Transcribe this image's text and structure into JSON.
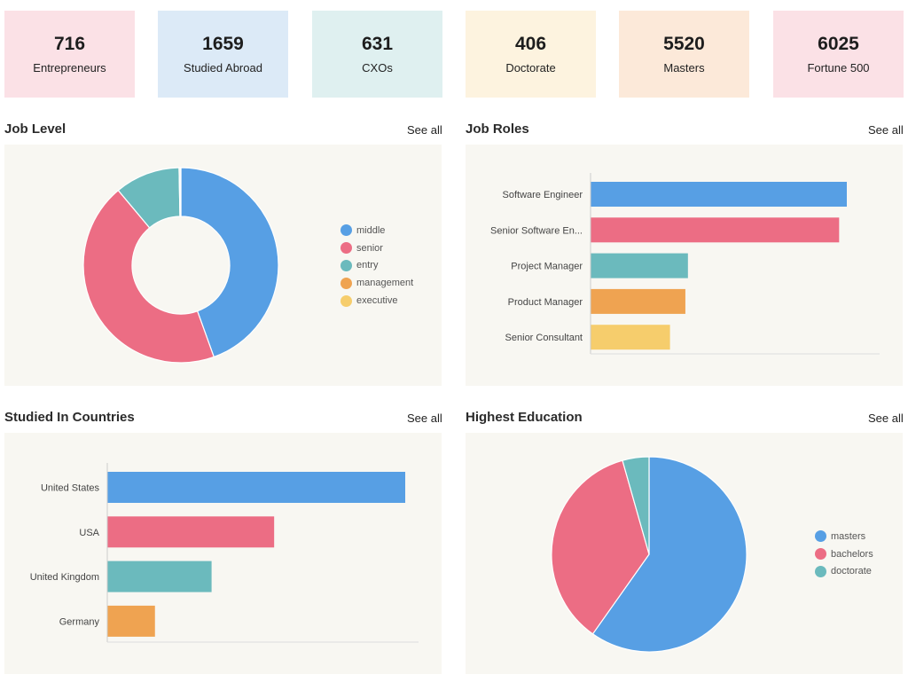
{
  "stats": [
    {
      "value": "716",
      "label": "Entrepreneurs",
      "bg": "#fbe1e6"
    },
    {
      "value": "1659",
      "label": "Studied Abroad",
      "bg": "#dceaf7"
    },
    {
      "value": "631",
      "label": "CXOs",
      "bg": "#dff0f0"
    },
    {
      "value": "406",
      "label": "Doctorate",
      "bg": "#fdf3df"
    },
    {
      "value": "5520",
      "label": "Masters",
      "bg": "#fce9d9"
    },
    {
      "value": "6025",
      "label": "Fortune 500",
      "bg": "#fbe1e6"
    }
  ],
  "sections": {
    "job_level": {
      "title": "Job Level",
      "see_all": "See all"
    },
    "job_roles": {
      "title": "Job Roles",
      "see_all": "See all"
    },
    "countries": {
      "title": "Studied In Countries",
      "see_all": "See all"
    },
    "education": {
      "title": "Highest Education",
      "see_all": "See all"
    }
  },
  "colors": {
    "blue": "#579fe4",
    "pink": "#ec6d84",
    "teal": "#6bbabd",
    "orange": "#efa351",
    "yellow": "#f6cd6c",
    "panel": "#f8f7f2"
  },
  "chart_data": [
    {
      "id": "job_level",
      "type": "pie",
      "donut": true,
      "legend_position": "right",
      "categories": [
        "middle",
        "senior",
        "entry",
        "management",
        "executive"
      ],
      "values": [
        44.5,
        44.4,
        10.8,
        0.2,
        0.1
      ]
    },
    {
      "id": "job_roles",
      "type": "bar",
      "orientation": "horizontal",
      "categories": [
        "Software Engineer",
        "Senior Software En...",
        "Project Manager",
        "Product Manager",
        "Senior Consultant"
      ],
      "values": [
        100,
        97,
        38,
        37,
        31
      ]
    },
    {
      "id": "countries",
      "type": "bar",
      "orientation": "horizontal",
      "categories": [
        "United States",
        "USA",
        "United Kingdom",
        "Germany"
      ],
      "values": [
        100,
        56,
        35,
        16
      ]
    },
    {
      "id": "education",
      "type": "pie",
      "donut": false,
      "legend_position": "right",
      "categories": [
        "masters",
        "bachelors",
        "doctorate"
      ],
      "values": [
        59.8,
        35.8,
        4.4
      ]
    }
  ]
}
